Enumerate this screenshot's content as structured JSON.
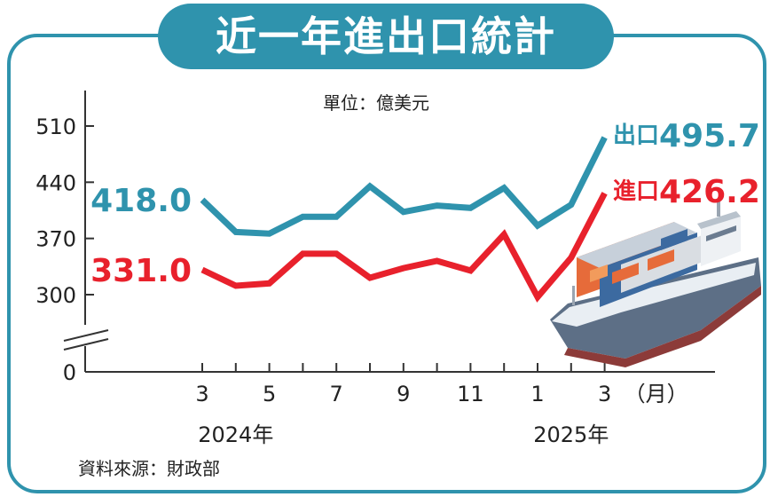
{
  "title": "近一年進出口統計",
  "unit": "單位：億美元",
  "source": "資料來源：財政部",
  "colors": {
    "export": "#2f93ad",
    "import": "#e8212c",
    "frame": "#2f93ad"
  },
  "chart_data": {
    "type": "line",
    "title": "近一年進出口統計",
    "ylabel": "單位：億美元",
    "y_ticks": [
      "0",
      "300",
      "370",
      "440",
      "510"
    ],
    "y_axis_break": true,
    "ylim": [
      0,
      510
    ],
    "x_tick_labels": [
      "3",
      "5",
      "7",
      "9",
      "11",
      "1",
      "3"
    ],
    "x_unit_label": "（月）",
    "year_labels": [
      "2024年",
      "2025年"
    ],
    "x": [
      "2024-03",
      "2024-04",
      "2024-05",
      "2024-06",
      "2024-07",
      "2024-08",
      "2024-09",
      "2024-10",
      "2024-11",
      "2024-12",
      "2025-01",
      "2025-02",
      "2025-03"
    ],
    "series": [
      {
        "name": "出口",
        "key": "export",
        "start_label": "418.0",
        "end_label": "495.7",
        "values": [
          418.0,
          378,
          376,
          397,
          397,
          435,
          403,
          411,
          408,
          433,
          386,
          412,
          495.7
        ]
      },
      {
        "name": "進口",
        "key": "import",
        "start_label": "331.0",
        "end_label": "426.2",
        "values": [
          331.0,
          311,
          314,
          351,
          351,
          321,
          333,
          342,
          330,
          375,
          297,
          346,
          426.2
        ]
      }
    ],
    "grid": false,
    "legend": "end-of-line labels"
  }
}
